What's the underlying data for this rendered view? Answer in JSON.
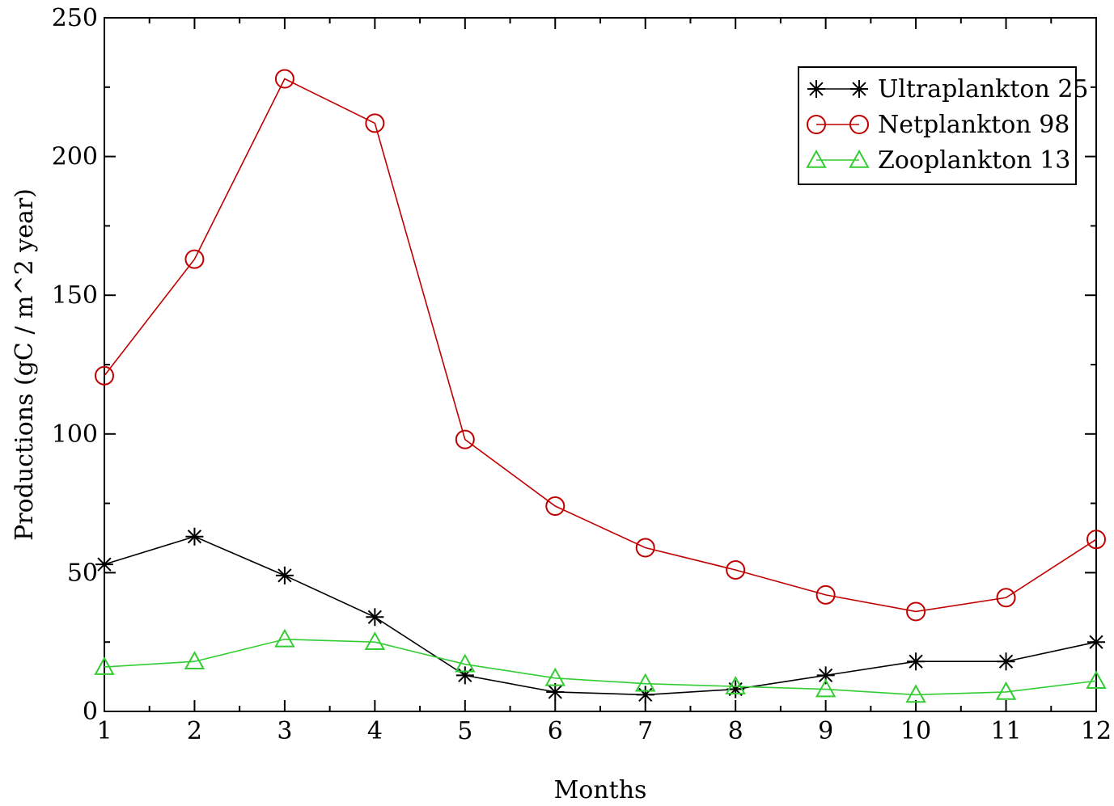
{
  "chart_data": {
    "type": "line",
    "title": "",
    "xlabel": "Months",
    "ylabel": "Productions (gC / m^2 year)",
    "xlim": [
      1,
      12
    ],
    "ylim": [
      0,
      250
    ],
    "x": [
      1,
      2,
      3,
      4,
      5,
      6,
      7,
      8,
      9,
      10,
      11,
      12
    ],
    "xticks": [
      1,
      2,
      3,
      4,
      5,
      6,
      7,
      8,
      9,
      10,
      11,
      12
    ],
    "yticks": [
      0,
      50,
      100,
      150,
      200,
      250
    ],
    "grid": false,
    "legend_position": "top-right",
    "series": [
      {
        "name": "Ultraplankton 25",
        "color": "#000000",
        "marker": "asterisk",
        "values": [
          53,
          63,
          49,
          34,
          13,
          7,
          6,
          8,
          13,
          18,
          18,
          25
        ]
      },
      {
        "name": "Netplankton 98",
        "color": "#c00000",
        "marker": "circle",
        "values": [
          121,
          163,
          228,
          212,
          98,
          74,
          59,
          51,
          42,
          36,
          41,
          62
        ]
      },
      {
        "name": "Zooplankton 13",
        "color": "#33cc33",
        "marker": "triangle",
        "values": [
          16,
          18,
          26,
          25,
          17,
          12,
          10,
          9,
          8,
          6,
          7,
          11
        ]
      }
    ]
  }
}
